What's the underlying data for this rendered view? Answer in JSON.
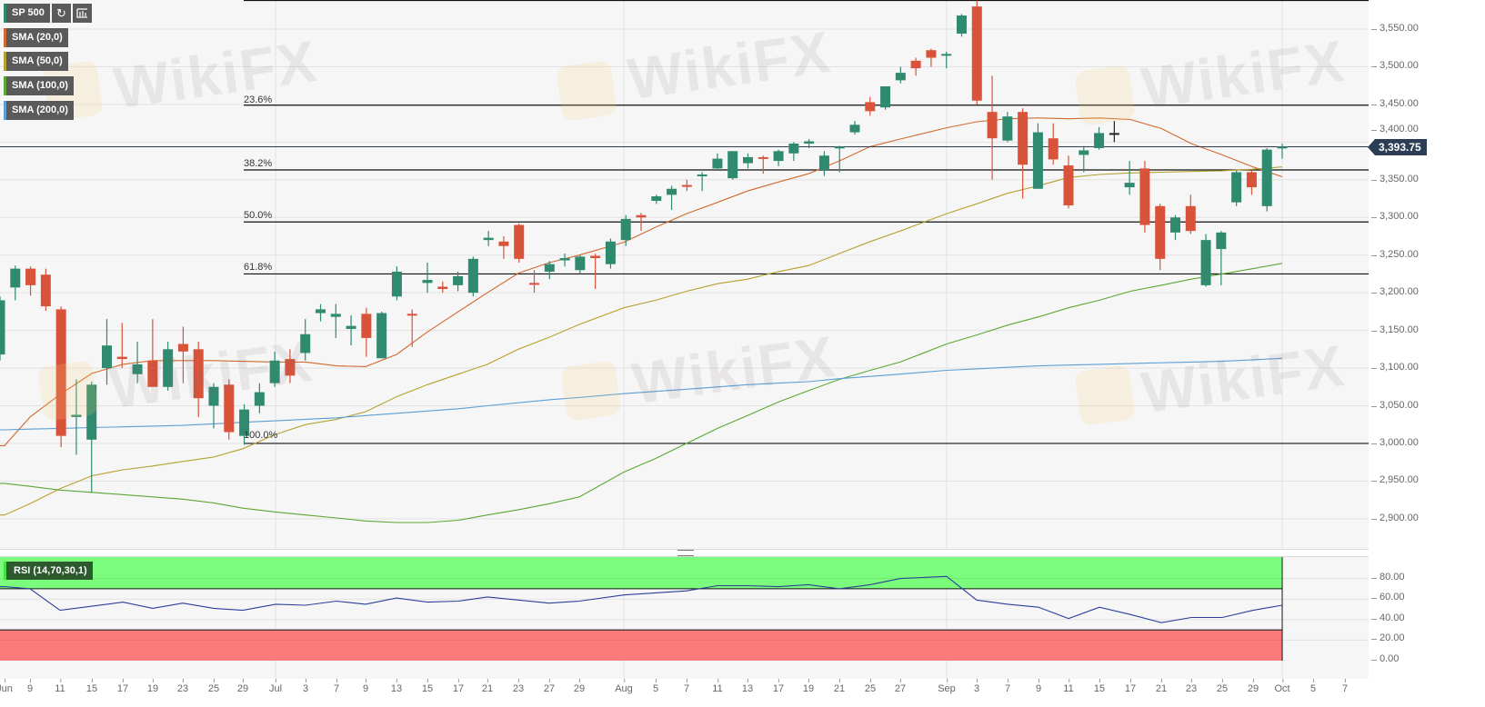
{
  "header": {
    "symbol": "SP 500",
    "refresh_icon": "refresh-icon",
    "chart_type_icon": "bar-chart-icon"
  },
  "indicators": [
    {
      "label": "SMA (20,0)",
      "color": "#d2692e"
    },
    {
      "label": "SMA (50,0)",
      "color": "#b5a130"
    },
    {
      "label": "SMA (100,0)",
      "color": "#5aa832"
    },
    {
      "label": "SMA (200,0)",
      "color": "#5b9fd6"
    }
  ],
  "watermark": "WikiFX",
  "colors": {
    "up": "#2f8a70",
    "down": "#d9533b",
    "neutral": "#222222",
    "last_price_bg": "#2c3e55",
    "rsi_line": "#2b3f9a",
    "overbought": "#7cfc7c",
    "oversold": "#fb7b7b"
  },
  "chart_data": [
    {
      "type": "candlestick",
      "title": "SP 500",
      "ylim": [
        2860,
        3590
      ],
      "grid": true,
      "y_ticks": [
        "3,550.00",
        "3,500.00",
        "3,450.00",
        "3,400.00",
        "3,350.00",
        "3,300.00",
        "3,250.00",
        "3,200.00",
        "3,150.00",
        "3,100.00",
        "3,050.00",
        "3,000.00",
        "2,950.00",
        "2,900.00"
      ],
      "x_ticks": [
        "Jun",
        "9",
        "11",
        "15",
        "17",
        "19",
        "23",
        "25",
        "29",
        "Jul",
        "3",
        "7",
        "9",
        "13",
        "15",
        "17",
        "21",
        "23",
        "27",
        "29",
        "Aug",
        "5",
        "7",
        "11",
        "13",
        "17",
        "19",
        "21",
        "25",
        "27",
        "Sep",
        "3",
        "7",
        "9",
        "11",
        "15",
        "17",
        "21",
        "23",
        "25",
        "29",
        "Oct",
        "5",
        "7"
      ],
      "last_price": 3393.75,
      "last_price_label": "3,393.75",
      "ohlc": [
        [
          3118,
          3195,
          3110,
          3190
        ],
        [
          3207,
          3236,
          3190,
          3232
        ],
        [
          3232,
          3235,
          3196,
          3210
        ],
        [
          3224,
          3232,
          3176,
          3182
        ],
        [
          3178,
          3182,
          2995,
          3010
        ],
        [
          3035,
          3085,
          2985,
          3038
        ],
        [
          3005,
          3082,
          2935,
          3078
        ],
        [
          3100,
          3165,
          3078,
          3130
        ],
        [
          3115,
          3160,
          3100,
          3112
        ],
        [
          3092,
          3135,
          3080,
          3105
        ],
        [
          3110,
          3165,
          3075,
          3075
        ],
        [
          3075,
          3135,
          3070,
          3125
        ],
        [
          3132,
          3155,
          3080,
          3122
        ],
        [
          3125,
          3135,
          3035,
          3060
        ],
        [
          3050,
          3080,
          3020,
          3075
        ],
        [
          3078,
          3085,
          3005,
          3015
        ],
        [
          3010,
          3052,
          2998,
          3045
        ],
        [
          3050,
          3080,
          3040,
          3068
        ],
        [
          3080,
          3122,
          3075,
          3110
        ],
        [
          3112,
          3125,
          3080,
          3090
        ],
        [
          3120,
          3165,
          3110,
          3145
        ],
        [
          3173,
          3185,
          3162,
          3178
        ],
        [
          3168,
          3185,
          3140,
          3172
        ],
        [
          3152,
          3170,
          3130,
          3156
        ],
        [
          3172,
          3180,
          3115,
          3140
        ],
        [
          3113,
          3175,
          3113,
          3173
        ],
        [
          3195,
          3235,
          3190,
          3228
        ],
        [
          3172,
          3178,
          3128,
          3170
        ],
        [
          3213,
          3240,
          3200,
          3217
        ],
        [
          3208,
          3215,
          3200,
          3205
        ],
        [
          3210,
          3228,
          3202,
          3222
        ],
        [
          3200,
          3248,
          3195,
          3245
        ],
        [
          3270,
          3282,
          3262,
          3273
        ],
        [
          3268,
          3275,
          3245,
          3262
        ],
        [
          3290,
          3292,
          3240,
          3245
        ],
        [
          3213,
          3230,
          3200,
          3211
        ],
        [
          3228,
          3242,
          3218,
          3238
        ],
        [
          3243,
          3252,
          3235,
          3246
        ],
        [
          3230,
          3250,
          3225,
          3248
        ],
        [
          3249,
          3252,
          3205,
          3246
        ],
        [
          3238,
          3272,
          3232,
          3268
        ],
        [
          3270,
          3303,
          3262,
          3298
        ],
        [
          3303,
          3306,
          3282,
          3300
        ],
        [
          3322,
          3330,
          3318,
          3328
        ],
        [
          3330,
          3342,
          3310,
          3338
        ],
        [
          3343,
          3350,
          3335,
          3341
        ],
        [
          3355,
          3360,
          3335,
          3357
        ],
        [
          3365,
          3385,
          3362,
          3378
        ],
        [
          3352,
          3388,
          3350,
          3388
        ],
        [
          3372,
          3385,
          3365,
          3380
        ],
        [
          3380,
          3382,
          3358,
          3378
        ],
        [
          3375,
          3390,
          3368,
          3388
        ],
        [
          3385,
          3400,
          3375,
          3398
        ],
        [
          3398,
          3404,
          3392,
          3401
        ],
        [
          3363,
          3388,
          3355,
          3382
        ],
        [
          3393,
          3395,
          3360,
          3394
        ],
        [
          3413,
          3428,
          3410,
          3423
        ],
        [
          3453,
          3460,
          3435,
          3441
        ],
        [
          3446,
          3474,
          3443,
          3474
        ],
        [
          3482,
          3500,
          3478,
          3492
        ],
        [
          3508,
          3512,
          3488,
          3498
        ],
        [
          3522,
          3524,
          3500,
          3512
        ],
        [
          3515,
          3520,
          3498,
          3517
        ],
        [
          3544,
          3570,
          3540,
          3568
        ],
        [
          3580,
          3588,
          3450,
          3455
        ],
        [
          3440,
          3488,
          3350,
          3405
        ],
        [
          3402,
          3440,
          3400,
          3434
        ],
        [
          3440,
          3445,
          3325,
          3370
        ],
        [
          3338,
          3425,
          3338,
          3413
        ],
        [
          3405,
          3425,
          3370,
          3377
        ],
        [
          3369,
          3382,
          3312,
          3316
        ],
        [
          3383,
          3395,
          3360,
          3389
        ],
        [
          3392,
          3420,
          3390,
          3412
        ],
        [
          3412,
          3428,
          3400,
          3412
        ],
        [
          3340,
          3375,
          3330,
          3346
        ],
        [
          3365,
          3375,
          3280,
          3290
        ],
        [
          3315,
          3318,
          3230,
          3245
        ],
        [
          3280,
          3303,
          3270,
          3300
        ],
        [
          3315,
          3330,
          3278,
          3282
        ],
        [
          3210,
          3278,
          3208,
          3270
        ],
        [
          3258,
          3282,
          3210,
          3280
        ],
        [
          3320,
          3362,
          3315,
          3360
        ],
        [
          3360,
          3362,
          3330,
          3340
        ],
        [
          3315,
          3392,
          3308,
          3390
        ],
        [
          3392,
          3398,
          3378,
          3394
        ]
      ],
      "series": [
        {
          "name": "SMA (20,0)",
          "values": [
            2997,
            3035,
            3065,
            3093,
            3105,
            3110,
            3110,
            3110,
            3109,
            3108,
            3108,
            3103,
            3102,
            3118,
            3148,
            3175,
            3200,
            3226,
            3240,
            3250,
            3267,
            3287,
            3305,
            3320,
            3335,
            3347,
            3358,
            3375,
            3394,
            3404,
            3419,
            3427,
            3431,
            3432,
            3431,
            3432,
            3430,
            3418,
            3398,
            3383,
            3367,
            3354
          ]
        },
        {
          "name": "SMA (50,0)",
          "values": [
            2905,
            2920,
            2940,
            2957,
            2965,
            2970,
            2976,
            2982,
            2993,
            3012,
            3025,
            3032,
            3042,
            3062,
            3078,
            3092,
            3105,
            3125,
            3141,
            3158,
            3180,
            3190,
            3202,
            3212,
            3218,
            3228,
            3236,
            3252,
            3268,
            3282,
            3305,
            3318,
            3332,
            3342,
            3353,
            3357,
            3359,
            3360,
            3361,
            3362,
            3364,
            3367
          ]
        },
        {
          "name": "SMA (100,0)",
          "values": [
            2947,
            2943,
            2938,
            2935,
            2932,
            2929,
            2926,
            2921,
            2914,
            2909,
            2905,
            2901,
            2897,
            2895,
            2895,
            2898,
            2905,
            2912,
            2920,
            2929,
            2962,
            2980,
            3000,
            3020,
            3037,
            3055,
            3070,
            3085,
            3097,
            3108,
            3132,
            3144,
            3157,
            3168,
            3180,
            3190,
            3202,
            3210,
            3218,
            3225,
            3232,
            3239
          ]
        },
        {
          "name": "SMA (200,0)",
          "values": [
            3018,
            3019,
            3020,
            3021,
            3022,
            3023,
            3024,
            3026,
            3028,
            3030,
            3032,
            3034,
            3037,
            3040,
            3043,
            3046,
            3050,
            3054,
            3058,
            3061,
            3066,
            3069,
            3072,
            3075,
            3078,
            3080,
            3082,
            3086,
            3089,
            3092,
            3097,
            3099,
            3101,
            3103,
            3104,
            3105,
            3106,
            3107,
            3108,
            3109,
            3111,
            3113
          ]
        }
      ],
      "fibonacci": [
        {
          "label": "",
          "value": 3588
        },
        {
          "label": "23.6%",
          "value": 3449
        },
        {
          "label": "38.2%",
          "value": 3363
        },
        {
          "label": "50.0%",
          "value": 3294
        },
        {
          "label": "61.8%",
          "value": 3225
        },
        {
          "label": "100.0%",
          "value": 3000
        }
      ]
    },
    {
      "type": "line",
      "title": "RSI (14,70,30,1)",
      "ylim": [
        0,
        100
      ],
      "y_ticks": [
        "80.00",
        "60.00",
        "40.00",
        "20.00",
        "0.00"
      ],
      "overbought": 70,
      "oversold": 30,
      "values": [
        72,
        70,
        49,
        53,
        57,
        51,
        56,
        51,
        49,
        55,
        54,
        58,
        55,
        61,
        57,
        58,
        62,
        59,
        56,
        58,
        64,
        66,
        68,
        73,
        73,
        72,
        74,
        70,
        74,
        80,
        82,
        59,
        55,
        52,
        41,
        52,
        45,
        37,
        42,
        42,
        49,
        54
      ]
    }
  ]
}
